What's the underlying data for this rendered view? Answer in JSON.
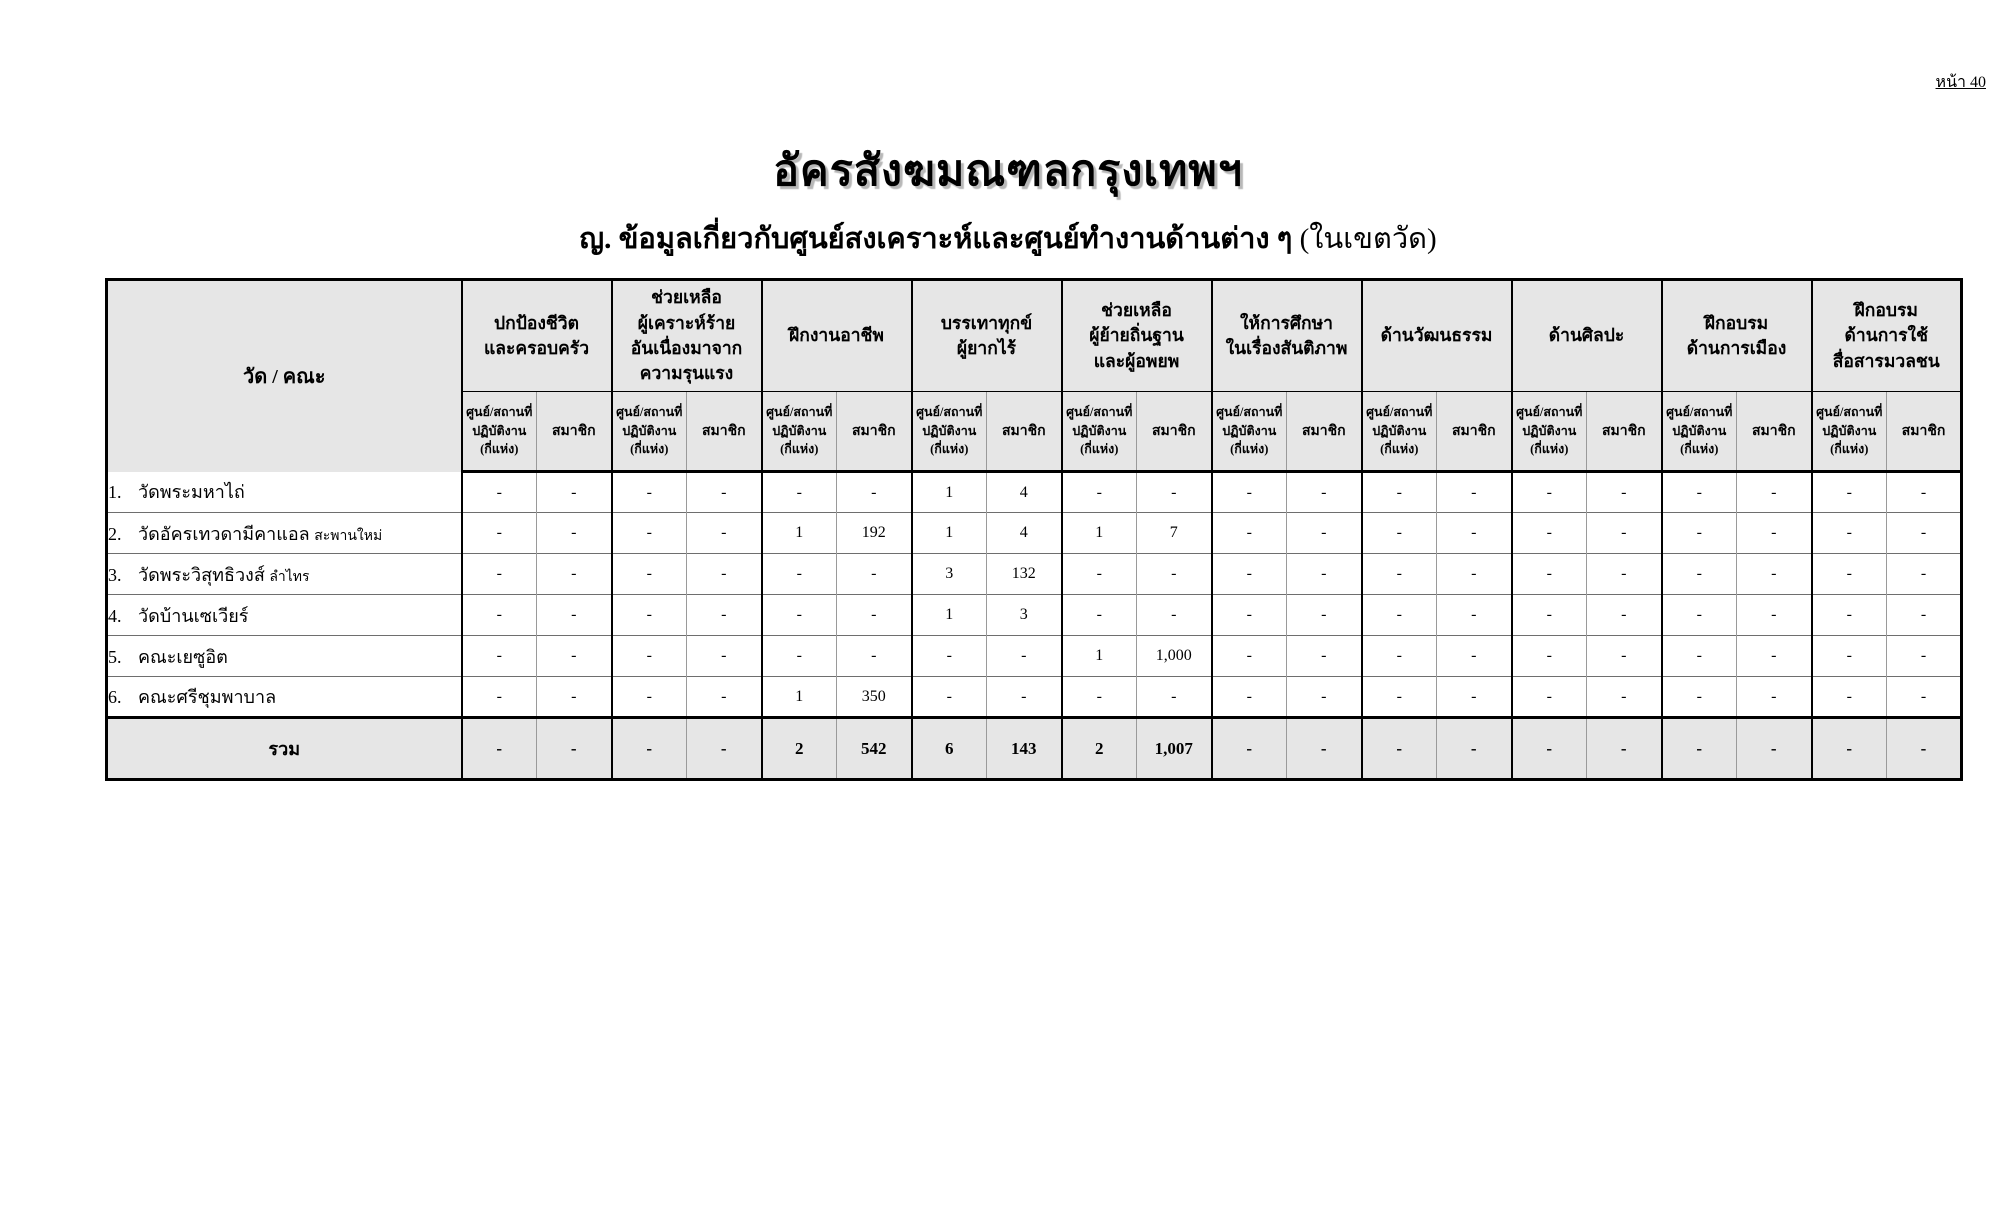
{
  "page": {
    "number_label": "หน้า 40"
  },
  "header": {
    "title": "อัครสังฆมณฑลกรุงเทพฯ",
    "subtitle": "ญ. ข้อมูลเกี่ยวกับศูนย์สงเคราะห์และศูนย์ทำงานด้านต่าง ๆ ",
    "subtitle_note": "(ในเขตวัด)"
  },
  "table": {
    "first_col_header": "วัด / คณะ",
    "groups": [
      "ปกป้องชีวิต\nและครอบครัว",
      "ช่วยเหลือ\nผู้เคราะห์ร้าย\nอันเนื่องมาจาก\nความรุนแรง",
      "ฝึกงานอาชีพ",
      "บรรเทาทุกข์\nผู้ยากไร้",
      "ช่วยเหลือ\nผู้ย้ายถิ่นฐาน\nและผู้อพยพ",
      "ให้การศึกษา\nในเรื่องสันติภาพ",
      "ด้านวัฒนธรรม",
      "ด้านศิลปะ",
      "ฝึกอบรม\nด้านการเมือง",
      "ฝึกอบรม\nด้านการใช้\nสื่อสารมวลชน"
    ],
    "sub_headers": {
      "centers": "ศูนย์/สถานที่\nปฏิบัติงาน\n(กี่แห่ง)",
      "members": "สมาชิก"
    },
    "rows": [
      {
        "no": "1.",
        "name": "วัดพระมหาไถ่",
        "name_suffix": "",
        "values": [
          "-",
          "-",
          "-",
          "-",
          "-",
          "-",
          "1",
          "4",
          "-",
          "-",
          "-",
          "-",
          "-",
          "-",
          "-",
          "-",
          "-",
          "-",
          "-",
          "-"
        ]
      },
      {
        "no": "2.",
        "name": "วัดอัครเทวดามีคาแอล",
        "name_suffix": "สะพานใหม่",
        "values": [
          "-",
          "-",
          "-",
          "-",
          "1",
          "192",
          "1",
          "4",
          "1",
          "7",
          "-",
          "-",
          "-",
          "-",
          "-",
          "-",
          "-",
          "-",
          "-",
          "-"
        ]
      },
      {
        "no": "3.",
        "name": "วัดพระวิสุทธิวงส์",
        "name_suffix": "ลำไทร",
        "values": [
          "-",
          "-",
          "-",
          "-",
          "-",
          "-",
          "3",
          "132",
          "-",
          "-",
          "-",
          "-",
          "-",
          "-",
          "-",
          "-",
          "-",
          "-",
          "-",
          "-"
        ]
      },
      {
        "no": "4.",
        "name": "วัดบ้านเซเวียร์",
        "name_suffix": "",
        "values": [
          "-",
          "-",
          "-",
          "-",
          "-",
          "-",
          "1",
          "3",
          "-",
          "-",
          "-",
          "-",
          "-",
          "-",
          "-",
          "-",
          "-",
          "-",
          "-",
          "-"
        ]
      },
      {
        "no": "5.",
        "name": "คณะเยซูอิต",
        "name_suffix": "",
        "values": [
          "-",
          "-",
          "-",
          "-",
          "-",
          "-",
          "-",
          "-",
          "1",
          "1,000",
          "-",
          "-",
          "-",
          "-",
          "-",
          "-",
          "-",
          "-",
          "-",
          "-"
        ]
      },
      {
        "no": "6.",
        "name": "คณะศรีชุมพาบาล",
        "name_suffix": "",
        "values": [
          "-",
          "-",
          "-",
          "-",
          "1",
          "350",
          "-",
          "-",
          "-",
          "-",
          "-",
          "-",
          "-",
          "-",
          "-",
          "-",
          "-",
          "-",
          "-",
          "-"
        ]
      }
    ],
    "total": {
      "label": "รวม",
      "values": [
        "-",
        "-",
        "-",
        "-",
        "2",
        "542",
        "6",
        "143",
        "2",
        "1,007",
        "-",
        "-",
        "-",
        "-",
        "-",
        "-",
        "-",
        "-",
        "-",
        "-"
      ]
    }
  },
  "layout_colors": {
    "header_bg": "#e6e6e6",
    "border_heavy": "#000000",
    "border_light": "#9a9a9a"
  }
}
